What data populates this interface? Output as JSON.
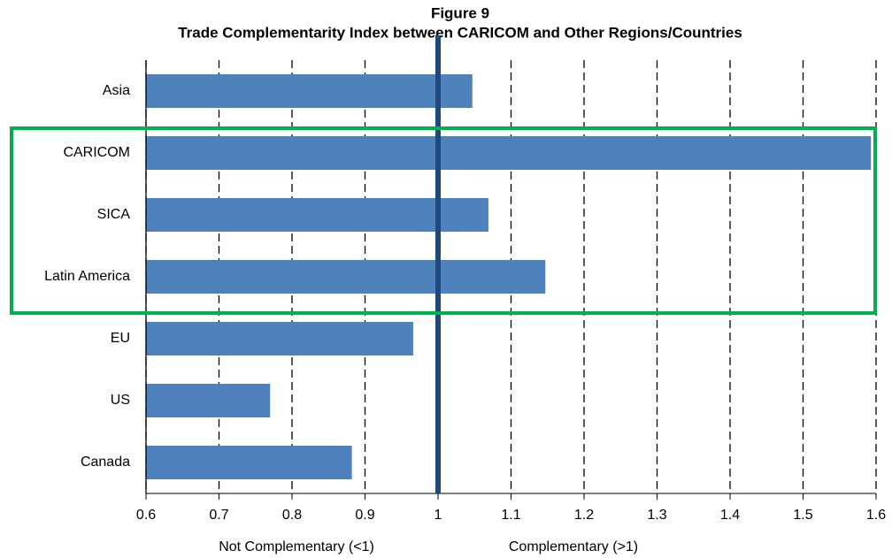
{
  "chart_data": {
    "type": "bar",
    "orientation": "horizontal",
    "title": "Figure 9",
    "subtitle": "Trade Complementarity Index between CARICOM and Other Regions/Countries",
    "categories": [
      "Asia",
      "CARICOM",
      "SICA",
      "Latin America",
      "EU",
      "US",
      "Canada"
    ],
    "values": [
      1.047,
      1.593,
      1.069,
      1.147,
      0.966,
      0.77,
      0.882
    ],
    "color": "#4f81bd",
    "xlim": [
      0.6,
      1.6
    ],
    "xticks": [
      0.6,
      0.7,
      0.8,
      0.9,
      1,
      1.1,
      1.2,
      1.3,
      1.4,
      1.5,
      1.6
    ],
    "grid": true,
    "reference_line": {
      "value": 1,
      "color": "#1f497d"
    },
    "annotations": [
      "Not Complementary (<1)",
      "Complementary (>1)"
    ]
  }
}
